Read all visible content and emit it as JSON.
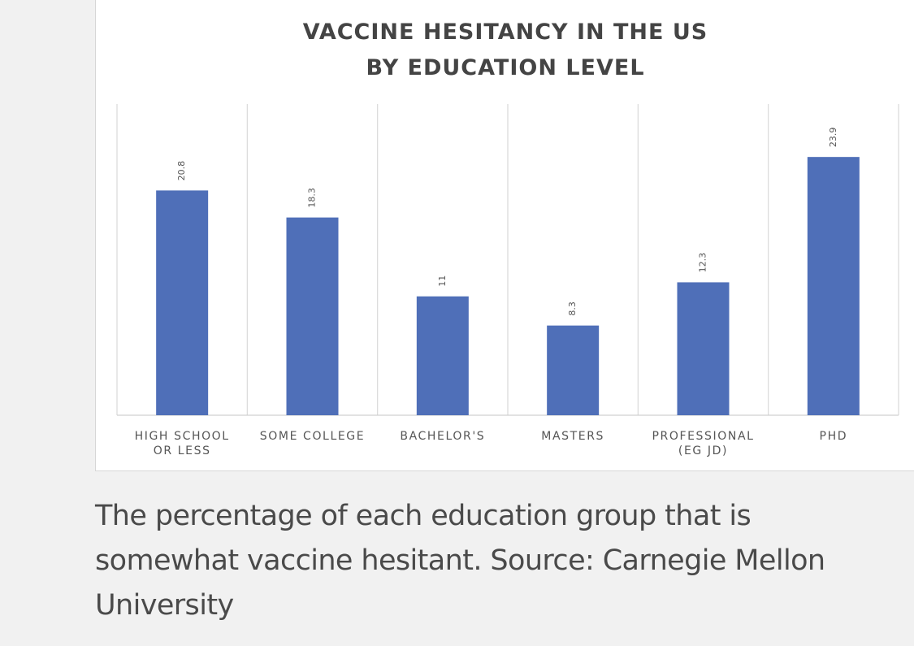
{
  "chart_data": {
    "type": "bar",
    "title_lines": [
      "VACCINE HESITANCY IN THE US",
      "BY EDUCATION LEVEL"
    ],
    "categories": [
      "HIGH SCHOOL\nOR LESS",
      "SOME COLLEGE",
      "BACHELOR'S",
      "MASTERS",
      "PROFESSIONAL\n(EG JD)",
      "PHD"
    ],
    "values": [
      20.8,
      18.3,
      11,
      8.3,
      12.3,
      23.9
    ],
    "data_labels": [
      "20.8",
      "18.3",
      "11",
      "8.3",
      "12.3",
      "23.9"
    ],
    "ylim": [
      0,
      30
    ],
    "bar_color": "#4f6fb8",
    "grid": "vertical separators",
    "legend": "none"
  },
  "caption": "The percentage of each education group that is somewhat vaccine hesitant. Source: Carnegie Mellon University"
}
